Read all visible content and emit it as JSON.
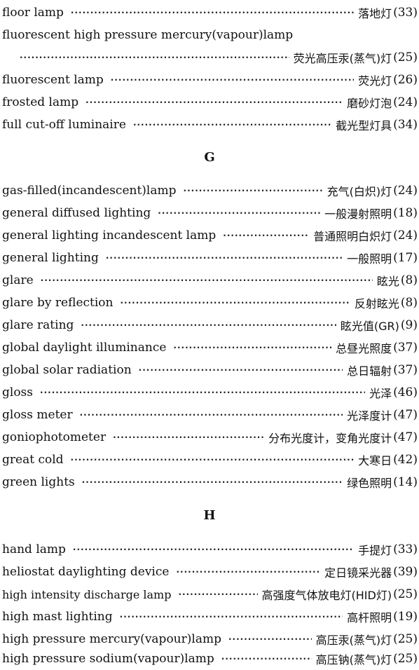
{
  "leader": "··························································································································",
  "entries_top": [
    {
      "term": "floor lamp",
      "zh": "落地灯",
      "ref": "(33)"
    },
    {
      "term": "fluorescent high pressure mercury(vapour)lamp",
      "zh": "",
      "ref": ""
    },
    {
      "term": "",
      "zh": "荧光高压汞(蒸气)灯",
      "ref": "(25)"
    },
    {
      "term": "fluorescent lamp",
      "zh": "荧光灯",
      "ref": "(26)"
    },
    {
      "term": "frosted lamp",
      "zh": "磨砂灯泡",
      "ref": "(24)"
    },
    {
      "term": "full cut-off luminaire",
      "zh": "截光型灯具",
      "ref": "(34)"
    }
  ],
  "section_g": "G",
  "entries_g": [
    {
      "term": "gas-filled(incandescent)lamp",
      "zh": "充气(白炽)灯",
      "ref": "(24)"
    },
    {
      "term": "general diffused lighting",
      "zh": "一般漫射照明",
      "ref": "(18)"
    },
    {
      "term": "general lighting incandescent lamp",
      "zh": "普通照明白炽灯",
      "ref": "(24)"
    },
    {
      "term": "general lighting",
      "zh": "一般照明",
      "ref": "(17)"
    },
    {
      "term": "glare",
      "zh": "眩光",
      "ref": "(8)"
    },
    {
      "term": "glare by reflection",
      "zh": "反射眩光",
      "ref": "(8)"
    },
    {
      "term": "glare rating",
      "zh": "眩光值(GR)",
      "ref": "(9)"
    },
    {
      "term": "global daylight illuminance",
      "zh": "总昼光照度",
      "ref": "(37)"
    },
    {
      "term": "global solar radiation",
      "zh": "总日辐射",
      "ref": "(37)"
    },
    {
      "term": "gloss",
      "zh": "光泽",
      "ref": "(46)"
    },
    {
      "term": "gloss meter",
      "zh": "光泽度计",
      "ref": "(47)"
    },
    {
      "term": "goniophotometer",
      "zh": "分布光度计，变角光度计",
      "ref": "(47)"
    },
    {
      "term": "great cold",
      "zh": "大寒日",
      "ref": "(42)"
    },
    {
      "term": "green lights",
      "zh": "绿色照明",
      "ref": "(14)"
    }
  ],
  "section_h": "H",
  "entries_h": [
    {
      "term": "hand lamp",
      "zh": "手提灯",
      "ref": "(33)"
    },
    {
      "term": "heliostat daylighting device",
      "zh": "定日镜采光器",
      "ref": "(39)"
    },
    {
      "term": "high intensity discharge lamp",
      "zh": "高强度气体放电灯(HID灯)",
      "ref": "(25)"
    },
    {
      "term": "high mast lighting",
      "zh": "高杆照明",
      "ref": "(19)"
    },
    {
      "term": "high pressure mercury(vapour)lamp",
      "zh": "高压汞(蒸气)灯",
      "ref": "(25)"
    },
    {
      "term": "high pressure sodium(vapour)lamp",
      "zh": "高压钠(蒸气)灯",
      "ref": "(25)"
    }
  ]
}
